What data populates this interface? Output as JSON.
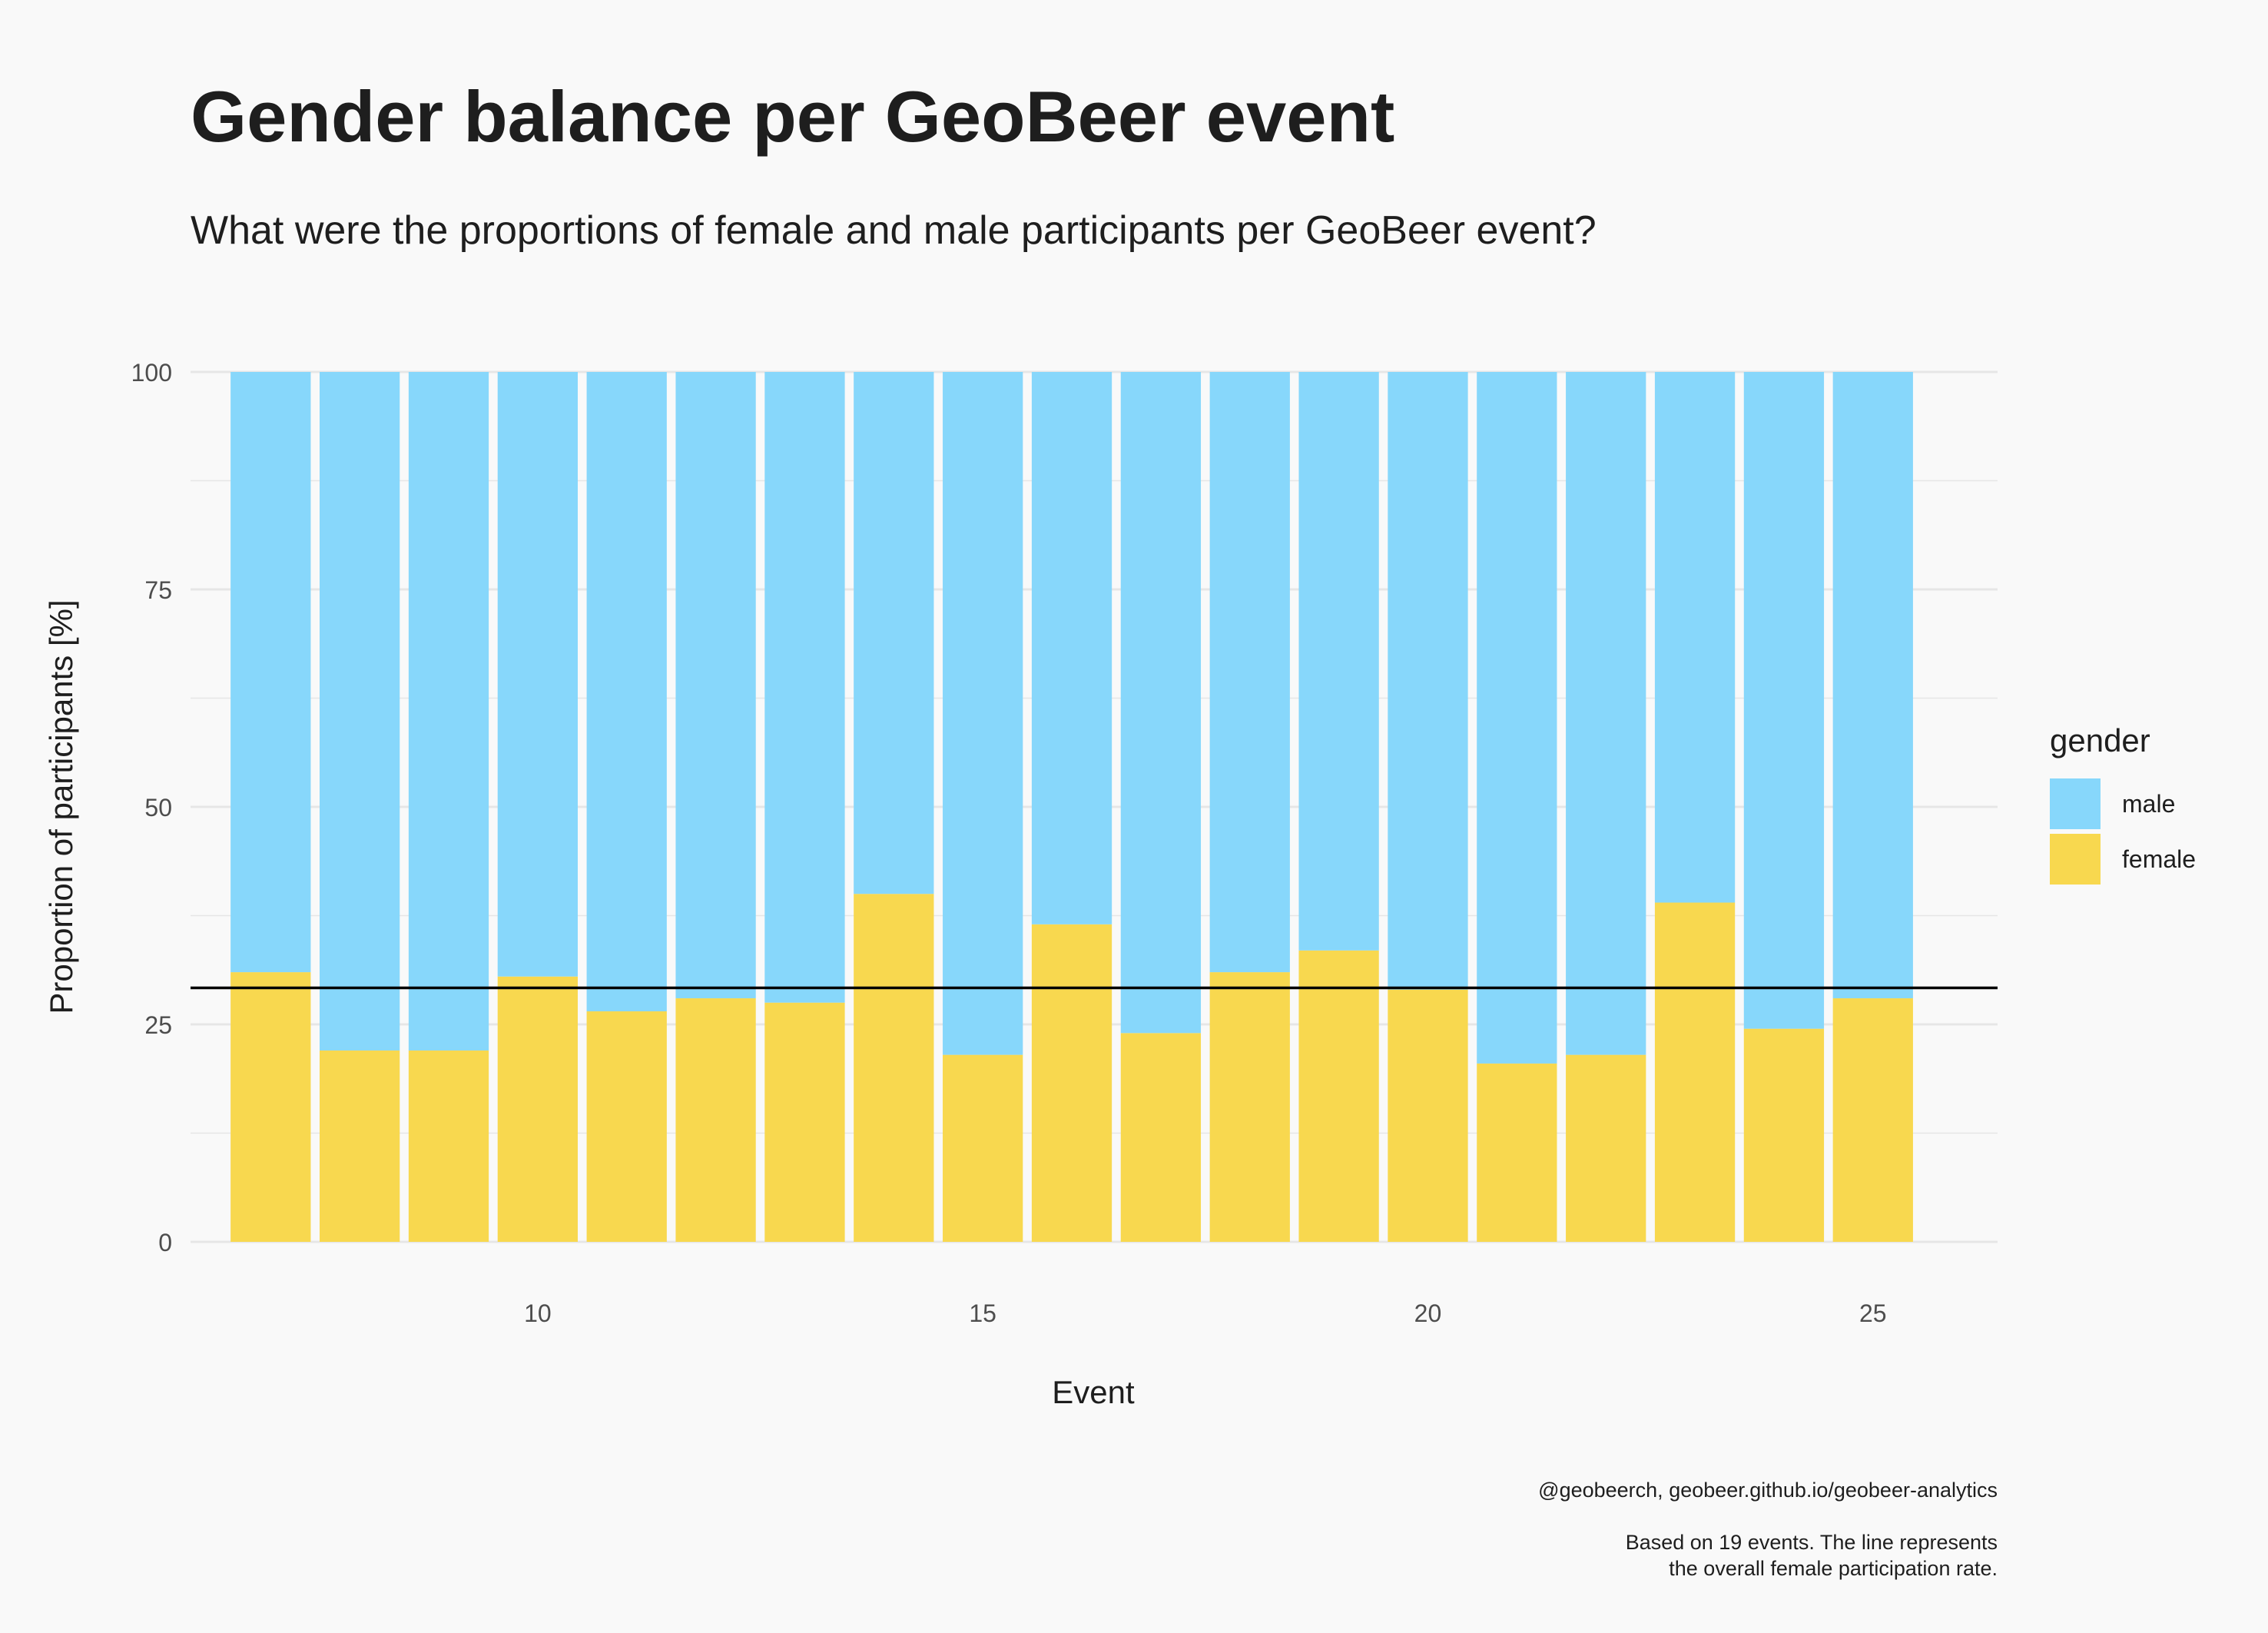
{
  "title": "Gender balance per GeoBeer event",
  "subtitle": "What were the proportions of female and male participants per GeoBeer event?",
  "caption": {
    "source": "@geobeerch, geobeer.github.io/geobeer-analytics",
    "note_line1": "Based on 19 events. The line represents",
    "note_line2": "the overall female participation rate."
  },
  "colors": {
    "male": "#87d7fb",
    "female": "#f8d84f",
    "line": "#000000",
    "grid": "#e6e6e6"
  },
  "legend": {
    "title": "gender",
    "male_label": "male",
    "female_label": "female"
  },
  "chart_data": {
    "type": "bar",
    "stacked": true,
    "title": "Gender balance per GeoBeer event",
    "xlabel": "Event",
    "ylabel": "Proportion of participants [%]",
    "ylim": [
      0,
      100
    ],
    "yticks": [
      0,
      25,
      50,
      75,
      100
    ],
    "xlim": [
      6.1,
      26.4
    ],
    "xticks": [
      10,
      15,
      20,
      25
    ],
    "x": [
      7,
      8,
      9,
      10,
      11,
      12,
      13,
      14,
      15,
      16,
      17,
      18,
      19,
      20,
      21,
      22,
      23,
      24,
      25
    ],
    "series": [
      {
        "name": "female",
        "values": [
          31,
          22,
          22,
          30.5,
          26.5,
          28,
          27.5,
          40,
          21.5,
          36.5,
          24,
          31,
          33.5,
          29,
          20.5,
          21.5,
          39,
          24.5,
          28
        ]
      },
      {
        "name": "male",
        "values": [
          69,
          78,
          78,
          69.5,
          73.5,
          72,
          72.5,
          60,
          78.5,
          63.5,
          76,
          69,
          66.5,
          71,
          79.5,
          78.5,
          61,
          75.5,
          72
        ]
      }
    ],
    "reference_line": {
      "label": "overall female participation rate",
      "value": 29.2
    },
    "legend_position": "right"
  }
}
